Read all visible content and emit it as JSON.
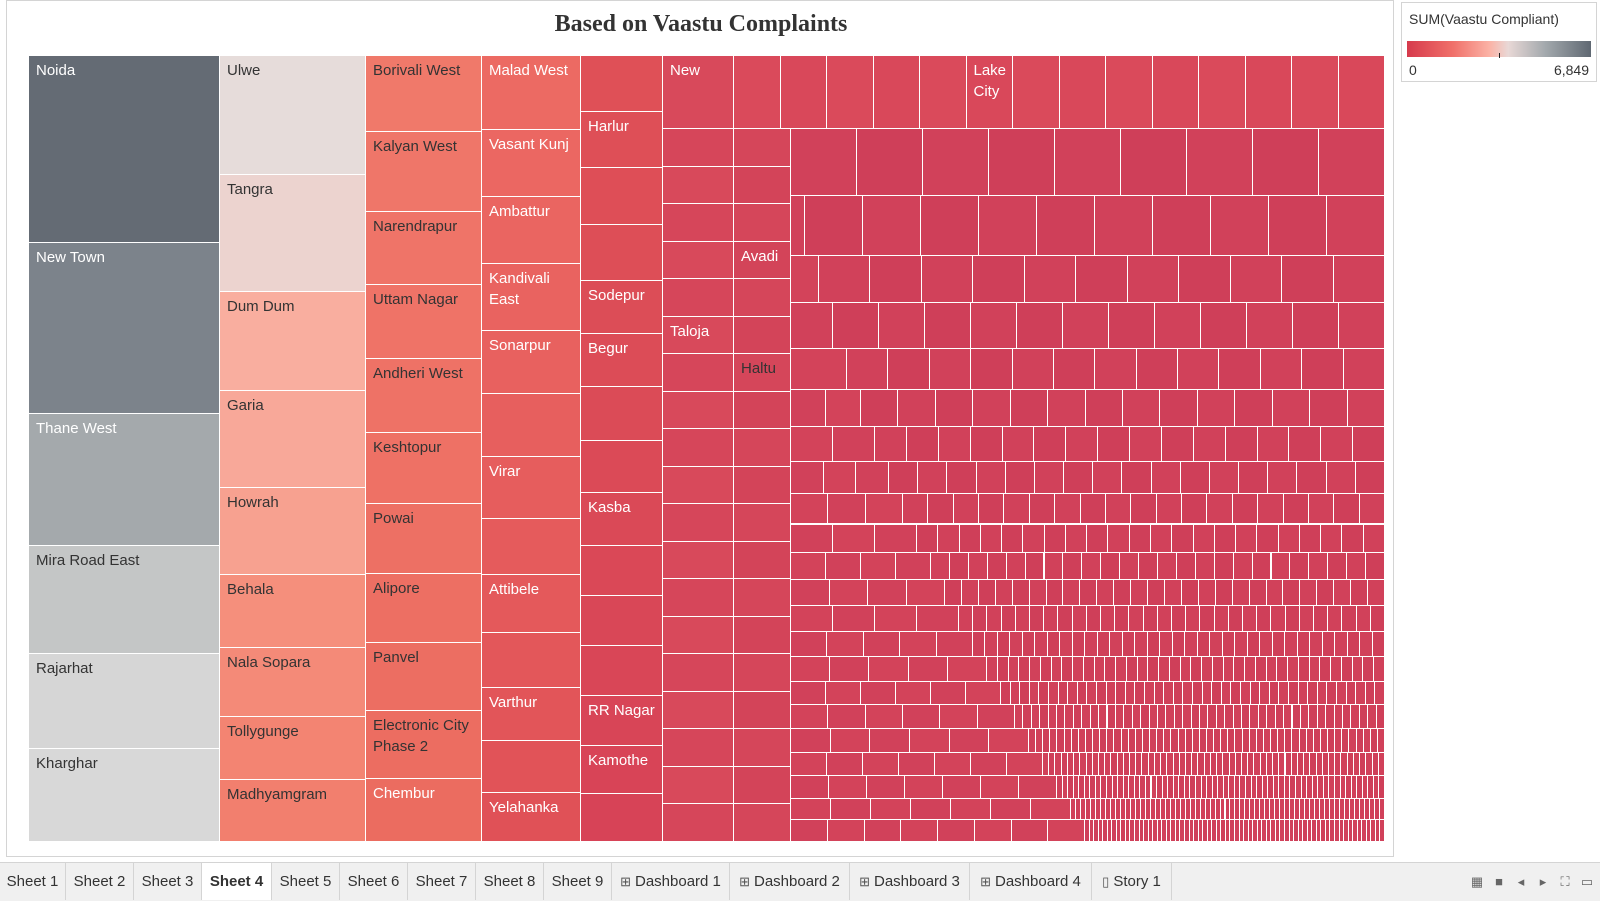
{
  "chart_data": {
    "type": "treemap",
    "title": "Based on Vaastu Complaints",
    "measure": "SUM(Vaastu Compliant)",
    "color_range": [
      0,
      6849
    ],
    "legend_min_label": "0",
    "legend_max_label": "6,849",
    "columns": [
      {
        "weight": 191,
        "items": [
          {
            "name": "Noida",
            "value": 6849,
            "color": "#646b74",
            "dark": false
          },
          {
            "name": "New Town",
            "value": 6300,
            "color": "#7c838b",
            "dark": false
          },
          {
            "name": "Thane West",
            "value": 4850,
            "color": "#a4a9ac",
            "dark": false
          },
          {
            "name": "Mira Road East",
            "value": 3950,
            "color": "#c4c6c6",
            "dark": true
          },
          {
            "name": "Rajarhat",
            "value": 3500,
            "color": "#d6d6d6",
            "dark": true
          },
          {
            "name": "Kharghar",
            "value": 3400,
            "color": "#d8d8d8",
            "dark": true
          }
        ]
      },
      {
        "weight": 146,
        "items": [
          {
            "name": "Ulwe",
            "value": 3250,
            "color": "#e6dcda",
            "dark": true
          },
          {
            "name": "Tangra",
            "value": 3200,
            "color": "#ecd3cf",
            "dark": true
          },
          {
            "name": "Dum Dum",
            "value": 2700,
            "color": "#f9ae9f",
            "dark": true
          },
          {
            "name": "Garia",
            "value": 2650,
            "color": "#f8a899",
            "dark": true
          },
          {
            "name": "Howrah",
            "value": 2350,
            "color": "#f7a190",
            "dark": true
          },
          {
            "name": "Behala",
            "value": 2000,
            "color": "#f58f7c",
            "dark": true
          },
          {
            "name": "Nala Sopara",
            "value": 1900,
            "color": "#f48a78",
            "dark": true
          },
          {
            "name": "Tollygunge",
            "value": 1700,
            "color": "#f38472",
            "dark": true
          },
          {
            "name": "Madhyamgram",
            "value": 1700,
            "color": "#f27f6e",
            "dark": true
          }
        ]
      },
      {
        "weight": 116,
        "items": [
          {
            "name": "Borivali West",
            "value": 1850,
            "color": "#f0796a",
            "dark": true
          },
          {
            "name": "Kalyan West",
            "value": 1950,
            "color": "#ef7669",
            "dark": true
          },
          {
            "name": "Narendrapur",
            "value": 1800,
            "color": "#ef7468",
            "dark": true
          },
          {
            "name": "Uttam Nagar",
            "value": 1800,
            "color": "#ef7367",
            "dark": true
          },
          {
            "name": "Andheri West",
            "value": 1800,
            "color": "#ee7266",
            "dark": true
          },
          {
            "name": "Keshtopur",
            "value": 1750,
            "color": "#ee7165",
            "dark": true
          },
          {
            "name": "Powai",
            "value": 1700,
            "color": "#ed7064",
            "dark": true
          },
          {
            "name": "Alipore",
            "value": 1700,
            "color": "#ed6f63",
            "dark": true
          },
          {
            "name": "Panvel",
            "value": 1650,
            "color": "#ec6e62",
            "dark": true
          },
          {
            "name": "Electronic City Phase 2",
            "value": 1650,
            "color": "#ec6d61",
            "dark": true
          },
          {
            "name": "Chembur",
            "value": 1550,
            "color": "#eb6c60",
            "dark": false
          }
        ]
      },
      {
        "weight": 99,
        "items": [
          {
            "name": "Malad West",
            "value": 1050,
            "color": "#ec6a63",
            "dark": false
          },
          {
            "name": "Vasant Kunj",
            "value": 950,
            "color": "#eb6762",
            "dark": false
          },
          {
            "name": "Ambattur",
            "value": 960,
            "color": "#ea6561",
            "dark": false
          },
          {
            "name": "Kandivali East",
            "value": 950,
            "color": "#e96360",
            "dark": false
          },
          {
            "name": "Sonarpur",
            "value": 900,
            "color": "#e8615f",
            "dark": false
          },
          {
            "name": "",
            "value": 890,
            "color": "#e75f5e",
            "dark": false
          },
          {
            "name": "Virar",
            "value": 880,
            "color": "#e65d5d",
            "dark": false
          },
          {
            "name": "",
            "value": 800,
            "color": "#e55b5c",
            "dark": false
          },
          {
            "name": "Attibele",
            "value": 820,
            "color": "#e4595b",
            "dark": false
          },
          {
            "name": "",
            "value": 780,
            "color": "#e3575a",
            "dark": false
          },
          {
            "name": "Varthur",
            "value": 750,
            "color": "#e25559",
            "dark": false
          },
          {
            "name": "",
            "value": 740,
            "color": "#e15358",
            "dark": false
          },
          {
            "name": "Yelahanka",
            "value": 700,
            "color": "#e05157",
            "dark": false
          }
        ]
      },
      {
        "weight": 82,
        "items": [
          {
            "name": "",
            "value": 560,
            "color": "#df5057",
            "dark": false
          },
          {
            "name": "Harlur",
            "value": 560,
            "color": "#de4f57",
            "dark": false
          },
          {
            "name": "",
            "value": 560,
            "color": "#de4e57",
            "dark": false
          },
          {
            "name": "",
            "value": 560,
            "color": "#dd4e57",
            "dark": false
          },
          {
            "name": "Sodepur",
            "value": 530,
            "color": "#dc4d57",
            "dark": false
          },
          {
            "name": "Begur",
            "value": 530,
            "color": "#dc4c57",
            "dark": false
          },
          {
            "name": "",
            "value": 540,
            "color": "#db4b57",
            "dark": false
          },
          {
            "name": "",
            "value": 510,
            "color": "#db4a57",
            "dark": false
          },
          {
            "name": "Kasba",
            "value": 530,
            "color": "#da4957",
            "dark": false
          },
          {
            "name": "",
            "value": 500,
            "color": "#da4857",
            "dark": false
          },
          {
            "name": "",
            "value": 500,
            "color": "#d94757",
            "dark": false
          },
          {
            "name": "",
            "value": 500,
            "color": "#d94657",
            "dark": false
          },
          {
            "name": "RR Nagar",
            "value": 490,
            "color": "#d84557",
            "dark": false
          },
          {
            "name": "Kamothe",
            "value": 480,
            "color": "#d84457",
            "dark": false
          },
          {
            "name": "",
            "value": 480,
            "color": "#d74357",
            "dark": false
          }
        ]
      }
    ],
    "remainder_labels": [
      "New",
      "Lake City",
      "Taloja",
      "Avadi",
      "Haltu"
    ]
  },
  "legend": {
    "title": "SUM(Vaastu Compliant)"
  },
  "tabs": [
    "Sheet 1",
    "Sheet 2",
    "Sheet 3",
    "Sheet 4",
    "Sheet 5",
    "Sheet 6",
    "Sheet 7",
    "Sheet 8",
    "Sheet 9",
    "Dashboard 1",
    "Dashboard 2",
    "Dashboard 3",
    "Dashboard 4",
    "Story 1"
  ],
  "active_tab": "Sheet 4"
}
